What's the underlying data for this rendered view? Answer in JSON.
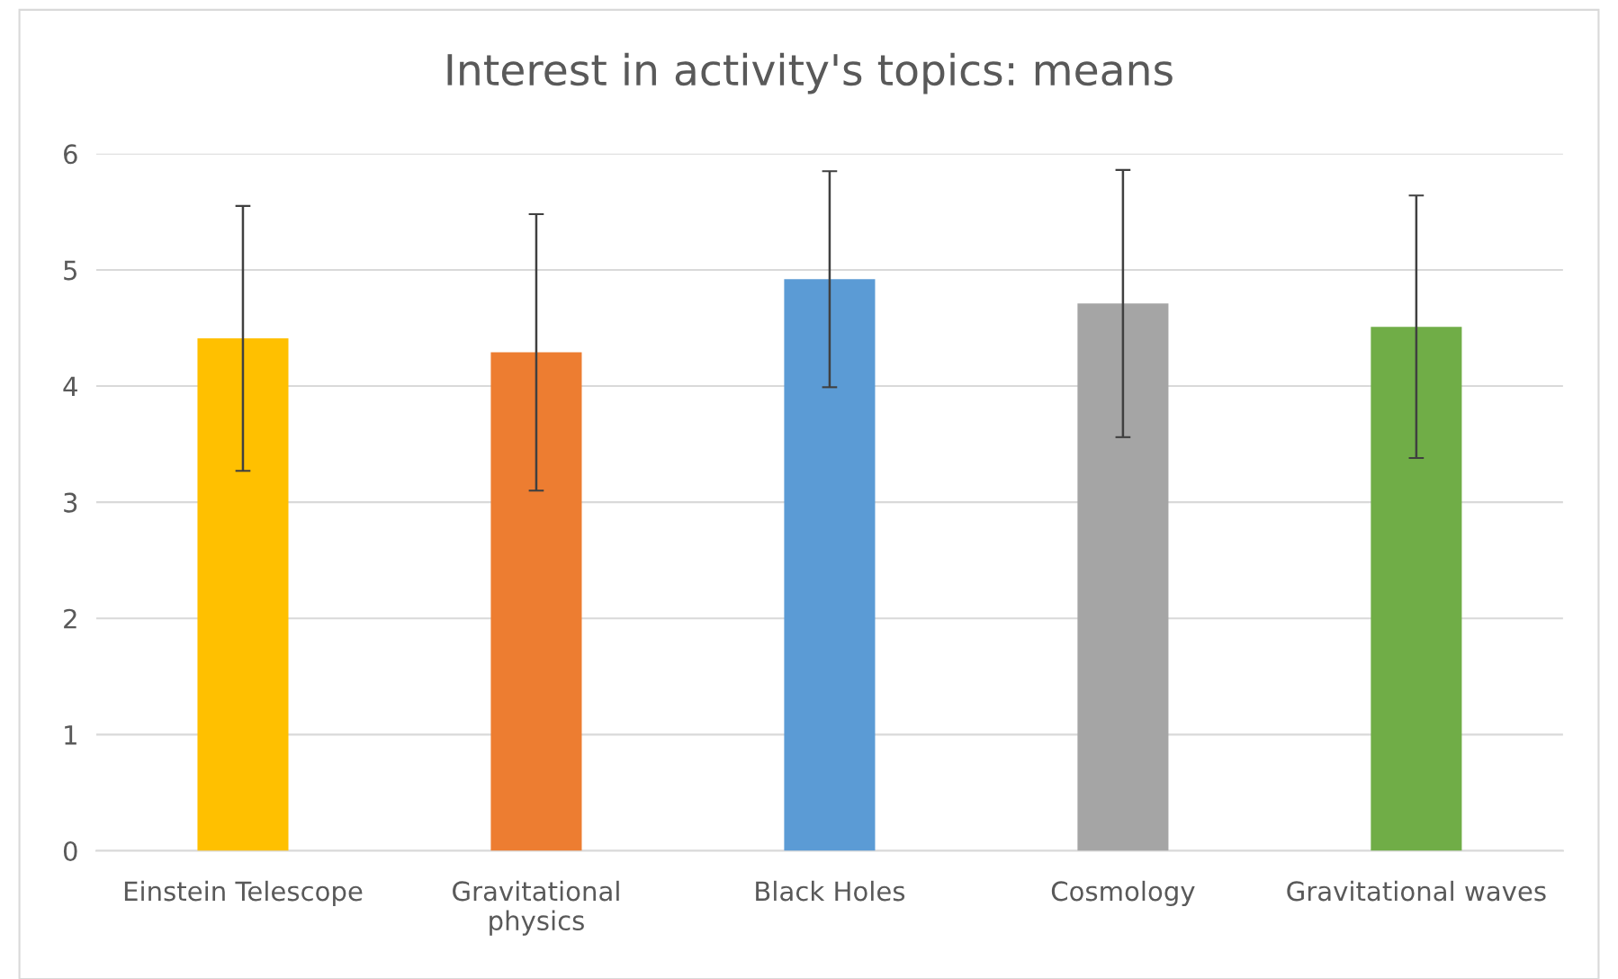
{
  "chart_data": {
    "type": "bar",
    "title": "Interest in activity's topics: means",
    "categories": [
      "Einstein Telescope",
      "Gravitational\nphysics",
      "Black Holes",
      "Cosmology",
      "Gravitational waves"
    ],
    "values": [
      4.41,
      4.29,
      4.92,
      4.71,
      4.51
    ],
    "errors": [
      1.14,
      1.19,
      0.93,
      1.15,
      1.13
    ],
    "colors": [
      "#ffc000",
      "#ed7d31",
      "#5b9bd5",
      "#a5a5a5",
      "#70ad47"
    ],
    "ylim": [
      0,
      6
    ],
    "yticks": [
      0,
      1,
      2,
      3,
      4,
      5,
      6
    ],
    "grid": "y"
  }
}
